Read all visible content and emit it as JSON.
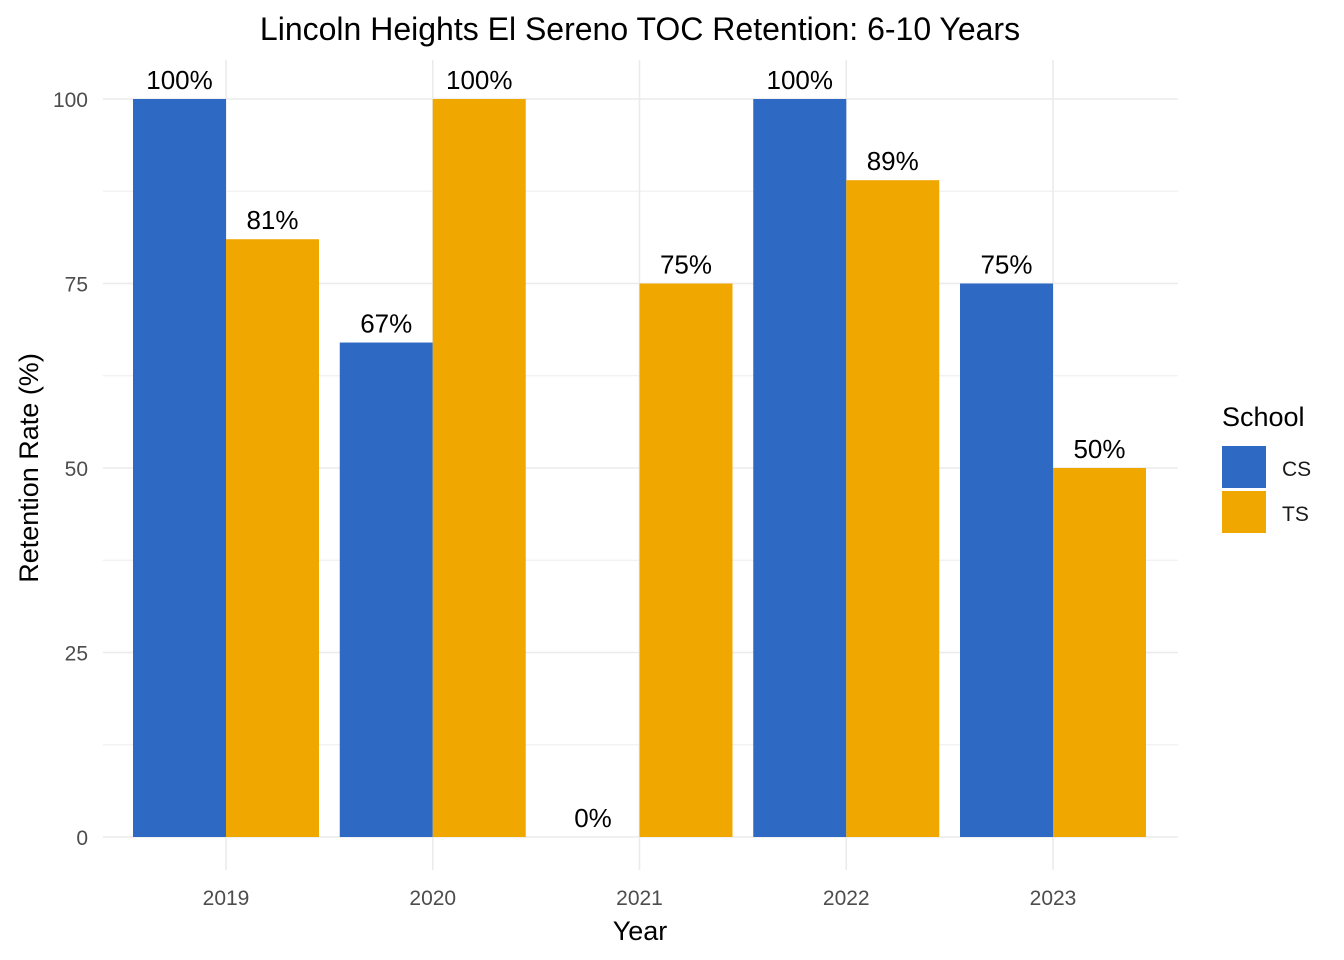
{
  "chart_data": {
    "type": "bar",
    "title": "Lincoln Heights El Sereno TOC Retention: 6-10 Years",
    "xlabel": "Year",
    "ylabel": "Retention Rate (%)",
    "categories": [
      "2019",
      "2020",
      "2021",
      "2022",
      "2023"
    ],
    "ylim": [
      0,
      100
    ],
    "yticks": [
      0,
      25,
      50,
      75,
      100
    ],
    "grid": true,
    "legend": {
      "title": "School",
      "placement": "right"
    },
    "series": [
      {
        "name": "CS",
        "color": "#2e69c4",
        "values": [
          100,
          67,
          0,
          100,
          75
        ],
        "labels": [
          "100%",
          "67%",
          "0%",
          "100%",
          "75%"
        ]
      },
      {
        "name": "TS",
        "color": "#f0a800",
        "values": [
          81,
          100,
          75,
          89,
          50
        ],
        "labels": [
          "81%",
          "100%",
          "75%",
          "89%",
          "50%"
        ]
      }
    ]
  }
}
